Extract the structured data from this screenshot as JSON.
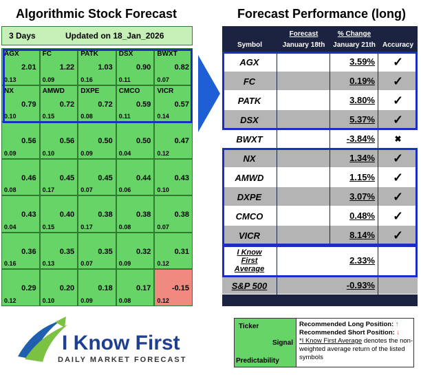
{
  "left_panel": {
    "title": "Algorithmic Stock Forecast",
    "period": "3 Days",
    "updated": "Updated on 18_Jan_2026",
    "rows": [
      [
        {
          "symbol": "AGX",
          "signal": "2.01",
          "predictability": "0.13"
        },
        {
          "symbol": "FC",
          "signal": "1.22",
          "predictability": "0.09"
        },
        {
          "symbol": "PATK",
          "signal": "1.03",
          "predictability": "0.16"
        },
        {
          "symbol": "DSX",
          "signal": "0.90",
          "predictability": "0.11"
        },
        {
          "symbol": "BWXT",
          "signal": "0.82",
          "predictability": "0.07"
        }
      ],
      [
        {
          "symbol": "NX",
          "signal": "0.79",
          "predictability": "0.10"
        },
        {
          "symbol": "AMWD",
          "signal": "0.72",
          "predictability": "0.15"
        },
        {
          "symbol": "DXPE",
          "signal": "0.72",
          "predictability": "0.08"
        },
        {
          "symbol": "CMCO",
          "signal": "0.59",
          "predictability": "0.11"
        },
        {
          "symbol": "VICR",
          "signal": "0.57",
          "predictability": "0.14"
        }
      ],
      [
        {
          "signal": "0.56",
          "predictability": "0.09"
        },
        {
          "signal": "0.56",
          "predictability": "0.10"
        },
        {
          "signal": "0.50",
          "predictability": "0.09"
        },
        {
          "signal": "0.50",
          "predictability": "0.04"
        },
        {
          "signal": "0.47",
          "predictability": "0.12"
        }
      ],
      [
        {
          "signal": "0.46",
          "predictability": "0.08"
        },
        {
          "signal": "0.45",
          "predictability": "0.17"
        },
        {
          "signal": "0.45",
          "predictability": "0.07"
        },
        {
          "signal": "0.44",
          "predictability": "0.06"
        },
        {
          "signal": "0.43",
          "predictability": "0.10"
        }
      ],
      [
        {
          "signal": "0.43",
          "predictability": "0.04"
        },
        {
          "signal": "0.40",
          "predictability": "0.15"
        },
        {
          "signal": "0.38",
          "predictability": "0.17"
        },
        {
          "signal": "0.38",
          "predictability": "0.08"
        },
        {
          "signal": "0.38",
          "predictability": "0.07"
        }
      ],
      [
        {
          "signal": "0.36",
          "predictability": "0.16"
        },
        {
          "signal": "0.35",
          "predictability": "0.13"
        },
        {
          "signal": "0.35",
          "predictability": "0.07"
        },
        {
          "signal": "0.32",
          "predictability": "0.09"
        },
        {
          "signal": "0.31",
          "predictability": "0.12"
        }
      ],
      [
        {
          "signal": "0.29",
          "predictability": "0.12"
        },
        {
          "signal": "0.20",
          "predictability": "0.10"
        },
        {
          "signal": "0.18",
          "predictability": "0.09"
        },
        {
          "signal": "0.17",
          "predictability": "0.08"
        },
        {
          "signal": "-0.15",
          "predictability": "0.12"
        }
      ]
    ]
  },
  "right_panel": {
    "title": "Forecast Performance (long)",
    "headers": {
      "symbol": "Symbol",
      "forecast": "Forecast",
      "forecast_date": "January 18th",
      "change": "% Change",
      "change_date": "January 21th",
      "accuracy": "Accuracy"
    },
    "rows": [
      {
        "symbol": "AGX",
        "change": "3.59%",
        "accuracy": "✓"
      },
      {
        "symbol": "FC",
        "change": "0.19%",
        "accuracy": "✓"
      },
      {
        "symbol": "PATK",
        "change": "3.80%",
        "accuracy": "✓"
      },
      {
        "symbol": "DSX",
        "change": "5.37%",
        "accuracy": "✓"
      },
      {
        "symbol": "BWXT",
        "change": "-3.84%",
        "accuracy": "✖"
      },
      {
        "symbol": "NX",
        "change": "1.34%",
        "accuracy": "✓"
      },
      {
        "symbol": "AMWD",
        "change": "1.15%",
        "accuracy": "✓"
      },
      {
        "symbol": "DXPE",
        "change": "3.07%",
        "accuracy": "✓"
      },
      {
        "symbol": "CMCO",
        "change": "0.48%",
        "accuracy": "✓"
      },
      {
        "symbol": "VICR",
        "change": "8.14%",
        "accuracy": "✓"
      }
    ],
    "average": {
      "label": "I Know First Average",
      "change": "2.33%"
    },
    "benchmark": {
      "label": "S&P 500",
      "change": "-0.93%"
    }
  },
  "legend": {
    "ticker": "Ticker",
    "signal": "Signal",
    "predictability": "Predictability",
    "long": "Recommended Long Position:",
    "short": "Recommended Short Position:",
    "note_term": "*I Know First Average",
    "note_text": "denotes the non-weighted average return of the listed symbols"
  },
  "logo": {
    "name": "I Know First",
    "tagline": "DAILY MARKET FORECAST"
  }
}
